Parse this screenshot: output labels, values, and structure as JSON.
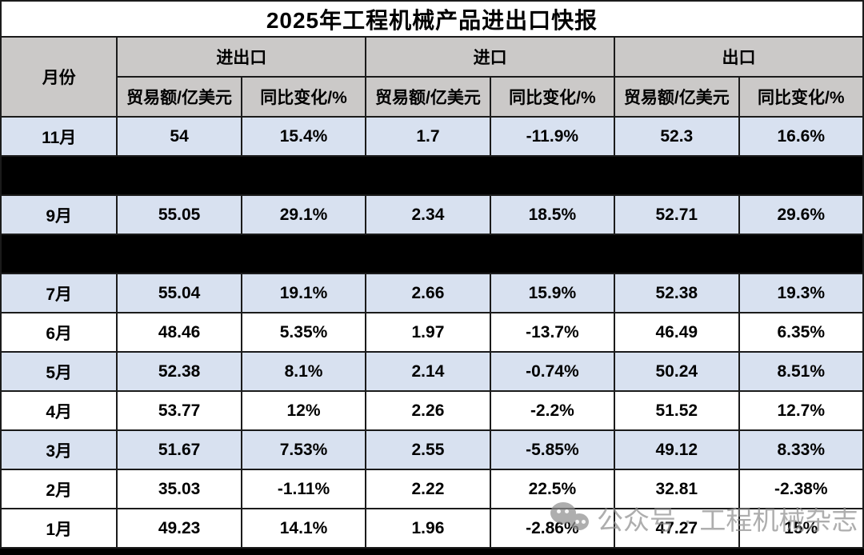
{
  "title": "2025年工程机械产品进出口快报",
  "table": {
    "month_header": "月份",
    "groups": [
      "进出口",
      "进口",
      "出口"
    ],
    "subheaders": [
      "贸易额/亿美元",
      "同比变化/%",
      "贸易额/亿美元",
      "同比变化/%",
      "贸易额/亿美元",
      "同比变化/%"
    ],
    "rows": [
      {
        "month": "11月",
        "redacted": false,
        "shade": "blue",
        "values": [
          "54",
          "15.4%",
          "1.7",
          "-11.9%",
          "52.3",
          "16.6%"
        ]
      },
      {
        "month": "",
        "redacted": true,
        "shade": "black",
        "values": []
      },
      {
        "month": "9月",
        "redacted": false,
        "shade": "blue",
        "values": [
          "55.05",
          "29.1%",
          "2.34",
          "18.5%",
          "52.71",
          "29.6%"
        ]
      },
      {
        "month": "",
        "redacted": true,
        "shade": "black",
        "values": []
      },
      {
        "month": "7月",
        "redacted": false,
        "shade": "blue",
        "values": [
          "55.04",
          "19.1%",
          "2.66",
          "15.9%",
          "52.38",
          "19.3%"
        ]
      },
      {
        "month": "6月",
        "redacted": false,
        "shade": "white",
        "values": [
          "48.46",
          "5.35%",
          "1.97",
          "-13.7%",
          "46.49",
          "6.35%"
        ]
      },
      {
        "month": "5月",
        "redacted": false,
        "shade": "blue",
        "values": [
          "52.38",
          "8.1%",
          "2.14",
          "-0.74%",
          "50.24",
          "8.51%"
        ]
      },
      {
        "month": "4月",
        "redacted": false,
        "shade": "white",
        "values": [
          "53.77",
          "12%",
          "2.26",
          "-2.2%",
          "51.52",
          "12.7%"
        ]
      },
      {
        "month": "3月",
        "redacted": false,
        "shade": "blue",
        "values": [
          "51.67",
          "7.53%",
          "2.55",
          "-5.85%",
          "49.12",
          "8.33%"
        ]
      },
      {
        "month": "2月",
        "redacted": false,
        "shade": "white",
        "values": [
          "35.03",
          "-1.11%",
          "2.22",
          "22.5%",
          "32.81",
          "-2.38%"
        ]
      },
      {
        "month": "1月",
        "redacted": false,
        "shade": "white",
        "values": [
          "49.23",
          "14.1%",
          "1.96",
          "-2.86%",
          "47.27",
          "15%"
        ]
      }
    ]
  },
  "watermark": {
    "icon": "wechat-icon",
    "text": "公众号 · 工程机械杂志"
  },
  "colors": {
    "header_bg": "#cbc9c8",
    "row_blue": "#d8e1f0",
    "row_white": "#ffffff",
    "redacted_row": "#000000",
    "border": "#1b1b1b",
    "title_bg": "#ffffff",
    "text": "#000000",
    "watermark": "#8f8f8f"
  }
}
